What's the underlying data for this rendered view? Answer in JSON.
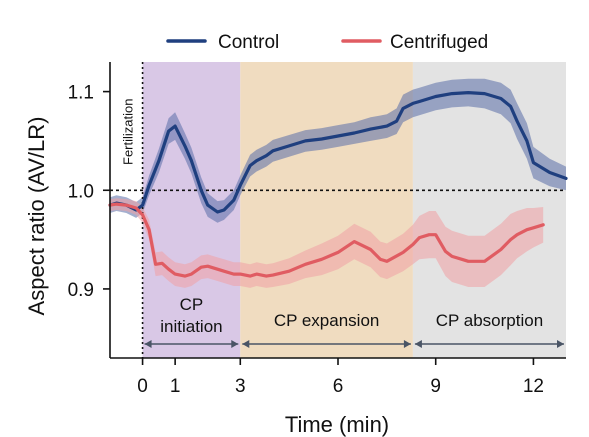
{
  "chart_data": {
    "type": "line",
    "xlabel": "Time (min)",
    "ylabel": "Aspect ratio (AV/LR)",
    "xlim": [
      -1.0,
      13.0
    ],
    "ylim": [
      0.83,
      1.13
    ],
    "xticks": [
      0,
      1,
      3,
      6,
      9,
      12
    ],
    "yticks": [
      0.9,
      1.0,
      1.1
    ],
    "reference_line": 1.0,
    "legend": {
      "position": "top"
    },
    "annotations": [
      {
        "text": "Fertilization",
        "x": 0
      }
    ],
    "phases": [
      {
        "label_lines": [
          "CP",
          "initiation"
        ],
        "start": 0,
        "end": 3,
        "color": "#d9c8e6"
      },
      {
        "label_lines": [
          "CP expansion"
        ],
        "start": 3,
        "end": 8.3,
        "color": "#f0dcc0"
      },
      {
        "label_lines": [
          "CP absorption"
        ],
        "start": 8.3,
        "end": 13.0,
        "color": "#e3e3e3"
      }
    ],
    "series": [
      {
        "name": "Control",
        "color": "#1f3f7f",
        "band_color": "#5a6da8",
        "x": [
          -1.0,
          -0.8,
          -0.5,
          -0.2,
          0.0,
          0.2,
          0.5,
          0.8,
          1.0,
          1.3,
          1.5,
          1.8,
          2.0,
          2.3,
          2.5,
          2.8,
          3.0,
          3.3,
          3.5,
          3.8,
          4.0,
          4.5,
          5.0,
          5.5,
          6.0,
          6.5,
          7.0,
          7.5,
          7.8,
          8.0,
          8.3,
          8.5,
          9.0,
          9.5,
          10.0,
          10.5,
          11.0,
          11.3,
          11.5,
          11.8,
          12.0,
          12.5,
          13.0
        ],
        "y": [
          0.985,
          0.987,
          0.985,
          0.98,
          0.985,
          1.005,
          1.03,
          1.06,
          1.065,
          1.045,
          1.03,
          1.0,
          0.985,
          0.978,
          0.98,
          0.99,
          1.005,
          1.025,
          1.03,
          1.035,
          1.04,
          1.045,
          1.05,
          1.052,
          1.055,
          1.058,
          1.062,
          1.065,
          1.07,
          1.083,
          1.088,
          1.09,
          1.095,
          1.098,
          1.099,
          1.098,
          1.093,
          1.085,
          1.07,
          1.05,
          1.028,
          1.018,
          1.012
        ],
        "err": [
          0.008,
          0.008,
          0.008,
          0.008,
          0.008,
          0.01,
          0.012,
          0.013,
          0.014,
          0.013,
          0.013,
          0.013,
          0.012,
          0.011,
          0.01,
          0.01,
          0.01,
          0.011,
          0.011,
          0.011,
          0.011,
          0.011,
          0.011,
          0.011,
          0.011,
          0.011,
          0.012,
          0.012,
          0.013,
          0.014,
          0.014,
          0.014,
          0.014,
          0.014,
          0.014,
          0.015,
          0.016,
          0.017,
          0.018,
          0.018,
          0.016,
          0.014,
          0.012
        ]
      },
      {
        "name": "Centrifuged",
        "color": "#e05c62",
        "band_color": "#f0a1a4",
        "x": [
          -1.0,
          -0.8,
          -0.5,
          -0.2,
          0.0,
          0.2,
          0.4,
          0.6,
          0.8,
          1.0,
          1.3,
          1.5,
          1.8,
          2.0,
          2.3,
          2.5,
          2.8,
          3.0,
          3.3,
          3.5,
          3.8,
          4.0,
          4.5,
          5.0,
          5.5,
          6.0,
          6.5,
          7.0,
          7.3,
          7.5,
          8.0,
          8.3,
          8.5,
          8.8,
          9.0,
          9.3,
          9.5,
          9.8,
          10.0,
          10.5,
          11.0,
          11.3,
          11.5,
          11.8,
          12.0,
          12.3
        ],
        "y": [
          0.985,
          0.986,
          0.985,
          0.982,
          0.975,
          0.96,
          0.925,
          0.926,
          0.92,
          0.915,
          0.913,
          0.915,
          0.922,
          0.923,
          0.92,
          0.918,
          0.915,
          0.915,
          0.913,
          0.915,
          0.913,
          0.914,
          0.918,
          0.925,
          0.93,
          0.937,
          0.948,
          0.94,
          0.93,
          0.928,
          0.937,
          0.945,
          0.952,
          0.955,
          0.955,
          0.938,
          0.933,
          0.93,
          0.928,
          0.928,
          0.94,
          0.95,
          0.955,
          0.96,
          0.962,
          0.965
        ],
        "err": [
          0.006,
          0.006,
          0.006,
          0.007,
          0.008,
          0.01,
          0.012,
          0.012,
          0.012,
          0.012,
          0.012,
          0.012,
          0.012,
          0.012,
          0.012,
          0.012,
          0.012,
          0.012,
          0.012,
          0.012,
          0.012,
          0.012,
          0.013,
          0.014,
          0.016,
          0.017,
          0.018,
          0.018,
          0.018,
          0.018,
          0.019,
          0.02,
          0.022,
          0.024,
          0.024,
          0.025,
          0.026,
          0.026,
          0.026,
          0.026,
          0.026,
          0.026,
          0.024,
          0.022,
          0.02,
          0.018
        ]
      }
    ]
  }
}
